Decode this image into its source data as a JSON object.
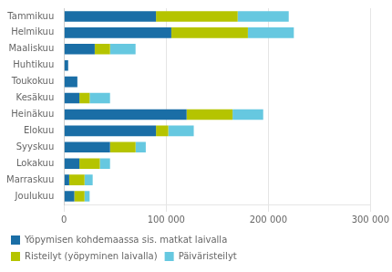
{
  "chart_data": {
    "type": "bar",
    "orientation": "horizontal",
    "stacked": true,
    "categories": [
      "Tammikuu",
      "Helmikuu",
      "Maaliskuu",
      "Huhtikuu",
      "Toukokuu",
      "Kesäkuu",
      "Heinäkuu",
      "Elokuu",
      "Syyskuu",
      "Lokakuu",
      "Marraskuu",
      "Joulukuu"
    ],
    "series": [
      {
        "name": "Yöpymisen kohdemaassa sis. matkat laivalla",
        "color": "#1a6ea6",
        "values": [
          90000,
          105000,
          30000,
          4000,
          13000,
          15000,
          120000,
          90000,
          45000,
          15000,
          5000,
          10000
        ]
      },
      {
        "name": "Risteilyt (yöpyminen laivalla)",
        "color": "#b5c400",
        "values": [
          80000,
          75000,
          15000,
          0,
          0,
          10000,
          45000,
          12000,
          25000,
          20000,
          15000,
          10000
        ]
      },
      {
        "name": "Päiväristeilyt",
        "color": "#66c8e0",
        "values": [
          50000,
          45000,
          25000,
          0,
          0,
          20000,
          30000,
          25000,
          10000,
          10000,
          8000,
          5000
        ]
      }
    ],
    "xlim": [
      0,
      300000
    ],
    "xticks": [
      0,
      {
        "value": 100000,
        "label": "100 000"
      },
      {
        "value": 200000,
        "label": "200 000"
      },
      {
        "value": 300000,
        "label": "300 000"
      }
    ],
    "grid": true,
    "legend": "bottom"
  }
}
